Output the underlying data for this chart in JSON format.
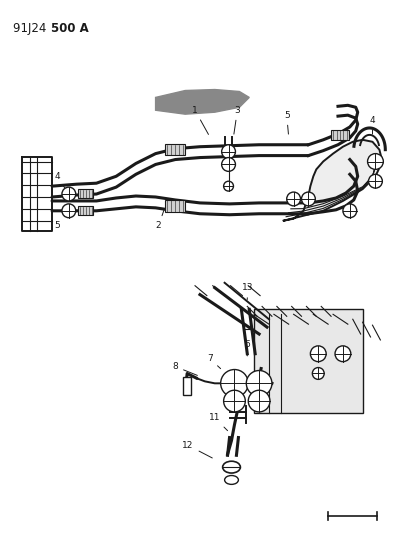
{
  "background_color": "#ffffff",
  "line_color": "#1a1a1a",
  "fig_width": 3.94,
  "fig_height": 5.33,
  "dpi": 100,
  "label_fontsize": 6.5,
  "title_fontsize": 8.5
}
